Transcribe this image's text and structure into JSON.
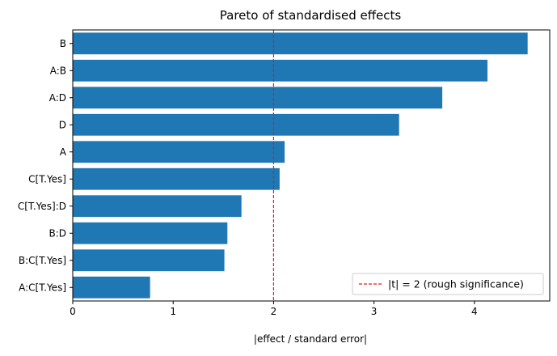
{
  "chart_data": {
    "type": "bar",
    "orientation": "horizontal",
    "title": "Pareto of standardised effects",
    "xlabel": "|effect / standard error|",
    "ylabel": "",
    "xlim": [
      0,
      4.75
    ],
    "xticks": [
      0,
      1,
      2,
      3,
      4
    ],
    "categories": [
      "B",
      "A:B",
      "A:D",
      "D",
      "A",
      "C[T.Yes]",
      "C[T.Yes]:D",
      "B:D",
      "B:C[T.Yes]",
      "A:C[T.Yes]"
    ],
    "values": [
      4.53,
      4.13,
      3.68,
      3.25,
      2.11,
      2.06,
      1.68,
      1.54,
      1.51,
      0.77
    ],
    "bar_color": "#1f77b4",
    "reference_line": {
      "x": 2,
      "color": "#e41a1c",
      "style": "dashed",
      "label": "|t| = 2 (rough significance)"
    },
    "legend_position": "bottom-right",
    "grid": false
  }
}
